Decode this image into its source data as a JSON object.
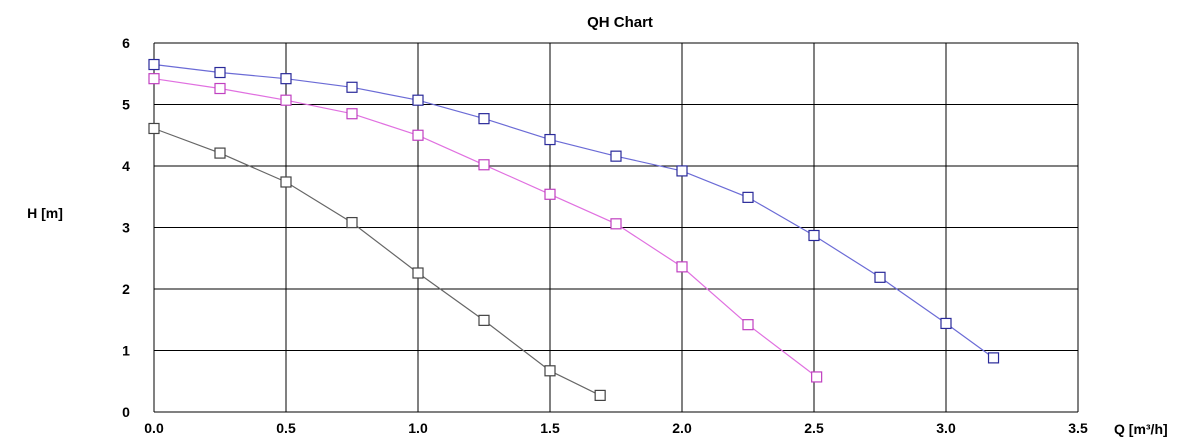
{
  "chart_data": {
    "type": "line",
    "title": "QH Chart",
    "xlabel": "Q [m³/h]",
    "ylabel": "H [m]",
    "xlim": [
      0,
      3.5
    ],
    "ylim": [
      0,
      6
    ],
    "grid": true,
    "x_ticks": [
      "0.0",
      "0.5",
      "1.0",
      "1.5",
      "2.0",
      "2.5",
      "3.0",
      "3.5"
    ],
    "y_ticks": [
      "0",
      "1",
      "2",
      "3",
      "4",
      "5",
      "6"
    ],
    "series": [
      {
        "color": "#6b6bd6",
        "marker_color": "#2a2a9a",
        "points": [
          [
            0.0,
            5.65
          ],
          [
            0.25,
            5.52
          ],
          [
            0.5,
            5.42
          ],
          [
            0.75,
            5.28
          ],
          [
            1.0,
            5.07
          ],
          [
            1.25,
            4.77
          ],
          [
            1.5,
            4.43
          ],
          [
            1.75,
            4.16
          ],
          [
            2.0,
            3.92
          ],
          [
            2.25,
            3.49
          ],
          [
            2.5,
            2.87
          ],
          [
            2.75,
            2.19
          ],
          [
            3.0,
            1.44
          ],
          [
            3.18,
            0.88
          ]
        ]
      },
      {
        "color": "#e070e0",
        "marker_color": "#c040c0",
        "points": [
          [
            0.0,
            5.42
          ],
          [
            0.25,
            5.26
          ],
          [
            0.5,
            5.07
          ],
          [
            0.75,
            4.85
          ],
          [
            1.0,
            4.5
          ],
          [
            1.25,
            4.02
          ],
          [
            1.5,
            3.54
          ],
          [
            1.75,
            3.06
          ],
          [
            2.0,
            2.36
          ],
          [
            2.25,
            1.42
          ],
          [
            2.51,
            0.57
          ]
        ]
      },
      {
        "color": "#666666",
        "marker_color": "#444444",
        "points": [
          [
            0.0,
            4.61
          ],
          [
            0.25,
            4.21
          ],
          [
            0.5,
            3.74
          ],
          [
            0.75,
            3.08
          ],
          [
            1.0,
            2.26
          ],
          [
            1.25,
            1.49
          ],
          [
            1.5,
            0.67
          ],
          [
            1.69,
            0.27
          ]
        ]
      }
    ]
  }
}
